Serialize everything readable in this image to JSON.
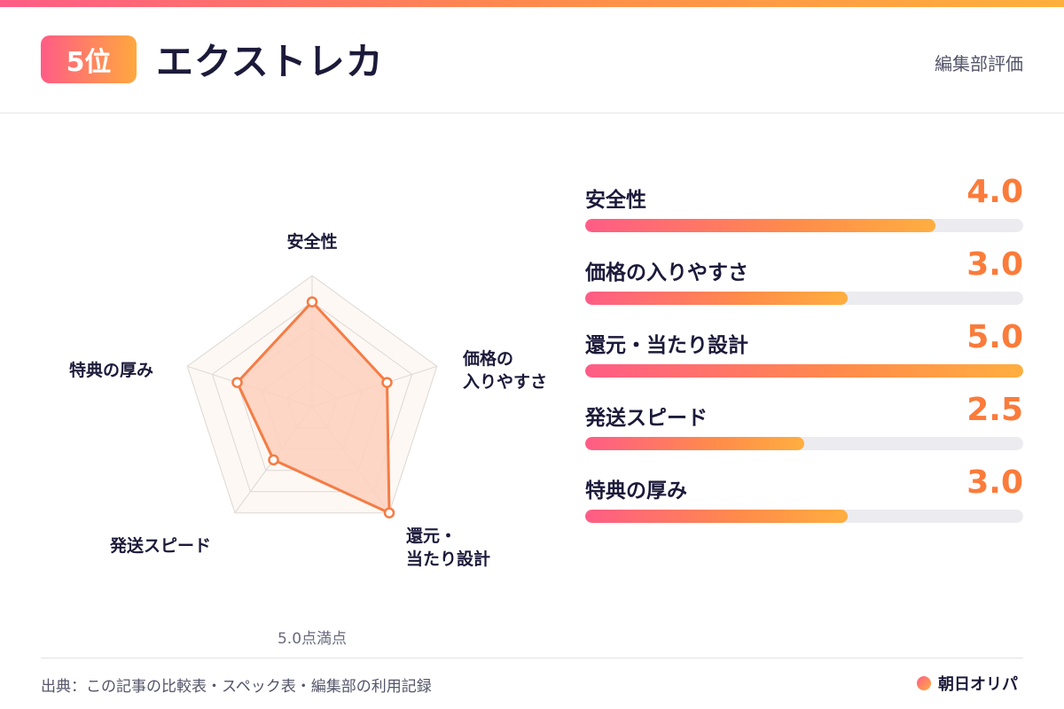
{
  "header": {
    "rank": "5位",
    "title": "エクストレカ",
    "note": "編集部評価"
  },
  "chart_data": {
    "type": "radar",
    "max": 5.0,
    "axes": [
      "安全性",
      "価格の入りやすさ",
      "還元・当たり設計",
      "発送スピード",
      "特典の厚み"
    ],
    "values": [
      4.0,
      3.0,
      5.0,
      2.5,
      3.0
    ],
    "axis_labels": [
      [
        "安全性"
      ],
      [
        "価格の",
        "入りやすさ"
      ],
      [
        "還元・",
        "当たり設計"
      ],
      [
        "発送スピード"
      ],
      [
        "特典の厚み"
      ]
    ],
    "note": "5.0点満点",
    "colors": {
      "fill": "#fdd2c0",
      "stroke": "#f57c45",
      "grid": "#ddd8d4",
      "bg": "#fdf8f4"
    }
  },
  "scores": [
    {
      "label": "安全性",
      "value_text": "4.0",
      "value": 4.0
    },
    {
      "label": "価格の入りやすさ",
      "value_text": "3.0",
      "value": 3.0
    },
    {
      "label": "還元・当たり設計",
      "value_text": "5.0",
      "value": 5.0
    },
    {
      "label": "発送スピード",
      "value_text": "2.5",
      "value": 2.5
    },
    {
      "label": "特典の厚み",
      "value_text": "3.0",
      "value": 3.0
    }
  ],
  "footer": {
    "source": "出典：この記事の比較表・スペック表・編集部の利用記録",
    "brand": "朝日オリパ"
  },
  "colors": {
    "accent": "#fb7b3a",
    "gradient_start": "#ff5c86",
    "gradient_end": "#ffae40"
  }
}
